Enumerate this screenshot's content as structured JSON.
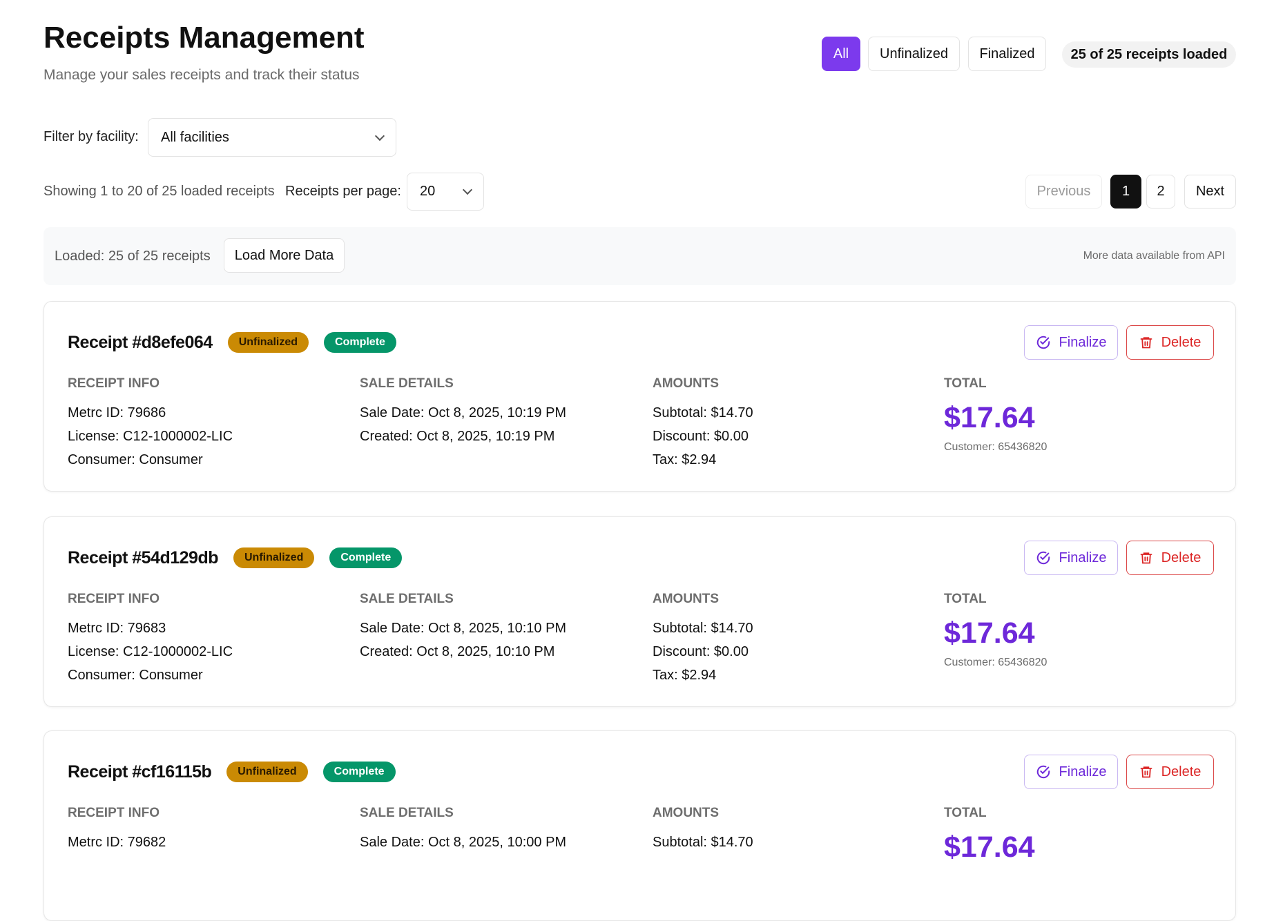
{
  "header": {
    "title": "Receipts Management",
    "subtitle": "Manage your sales receipts and track their status"
  },
  "status_filter": {
    "options": [
      "All",
      "Unfinalized",
      "Finalized"
    ],
    "selected": "All",
    "loaded_badge": "25 of 25 receipts loaded"
  },
  "facility_filter": {
    "label": "Filter by facility:",
    "value": "All facilities"
  },
  "paging": {
    "showing": "Showing 1 to 20 of 25 loaded receipts",
    "per_page_label": "Receipts per page:",
    "per_page_value": "20",
    "previous": "Previous",
    "pages": [
      "1",
      "2"
    ],
    "current_page": "1",
    "next": "Next"
  },
  "load_panel": {
    "loaded": "Loaded: 25 of 25 receipts",
    "load_more": "Load More Data",
    "note": "More data available from API"
  },
  "colors": {
    "accent": "#7c3aed",
    "unfinalized": "#ca8a04",
    "complete": "#059669",
    "delete": "#dc2626"
  },
  "labels": {
    "receipt_info": "RECEIPT INFO",
    "sale_details": "SALE DETAILS",
    "amounts": "AMOUNTS",
    "total": "TOTAL",
    "finalize": "Finalize",
    "delete": "Delete"
  },
  "receipts": [
    {
      "title": "Receipt #d8efe064",
      "status": "Unfinalized",
      "state": "Complete",
      "metrc": "Metrc ID: 79686",
      "license": "License: C12-1000002-LIC",
      "consumer": "Consumer: Consumer",
      "sale_date": "Sale Date: Oct 8, 2025, 10:19 PM",
      "created": "Created: Oct 8, 2025, 10:19 PM",
      "subtotal": "Subtotal: $14.70",
      "discount": "Discount: $0.00",
      "tax": "Tax: $2.94",
      "total": "$17.64",
      "customer": "Customer: 65436820"
    },
    {
      "title": "Receipt #54d129db",
      "status": "Unfinalized",
      "state": "Complete",
      "metrc": "Metrc ID: 79683",
      "license": "License: C12-1000002-LIC",
      "consumer": "Consumer: Consumer",
      "sale_date": "Sale Date: Oct 8, 2025, 10:10 PM",
      "created": "Created: Oct 8, 2025, 10:10 PM",
      "subtotal": "Subtotal: $14.70",
      "discount": "Discount: $0.00",
      "tax": "Tax: $2.94",
      "total": "$17.64",
      "customer": "Customer: 65436820"
    },
    {
      "title": "Receipt #cf16115b",
      "status": "Unfinalized",
      "state": "Complete",
      "metrc": "Metrc ID: 79682",
      "sale_date": "Sale Date: Oct 8, 2025, 10:00 PM",
      "subtotal": "Subtotal: $14.70",
      "total": "$17.64"
    }
  ]
}
